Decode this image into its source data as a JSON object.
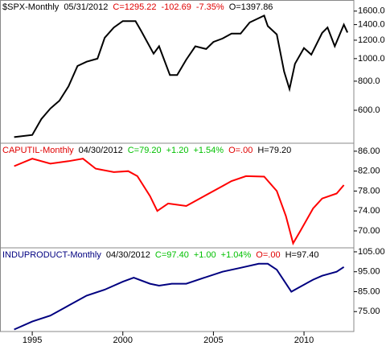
{
  "chart_data": [
    {
      "type": "line",
      "log_scale": true,
      "header": [
        {
          "text": "$SPX-Monthly",
          "color": "#000000"
        },
        {
          "text": "05/31/2012",
          "color": "#000000"
        },
        {
          "text": "C=1295.22",
          "color": "#e00000"
        },
        {
          "text": "-102.69",
          "color": "#e00000"
        },
        {
          "text": "-7.35%",
          "color": "#e00000"
        },
        {
          "text": "O=1397.86",
          "color": "#000000"
        }
      ],
      "x": [
        1994.0,
        1995.0,
        1995.5,
        1996.0,
        1996.5,
        1997.0,
        1997.5,
        1998.0,
        1998.6,
        1999.0,
        1999.5,
        2000.0,
        2000.7,
        2001.0,
        2001.7,
        2002.0,
        2002.6,
        2003.0,
        2003.5,
        2004.0,
        2004.6,
        2005.0,
        2005.5,
        2006.0,
        2006.5,
        2007.0,
        2007.8,
        2008.0,
        2008.5,
        2008.9,
        2009.2,
        2009.5,
        2010.0,
        2010.4,
        2011.0,
        2011.3,
        2011.7,
        2012.2,
        2012.4
      ],
      "series": [
        {
          "name": "$SPX",
          "color": "#000000",
          "values": [
            460,
            470,
            550,
            610,
            660,
            760,
            930,
            970,
            1000,
            1230,
            1360,
            1450,
            1450,
            1320,
            1050,
            1130,
            850,
            850,
            990,
            1130,
            1100,
            1180,
            1220,
            1280,
            1280,
            1430,
            1530,
            1380,
            1270,
            880,
            740,
            950,
            1110,
            1040,
            1290,
            1360,
            1130,
            1400,
            1295
          ]
        }
      ],
      "xlim": [
        1993.22,
        2012.75
      ],
      "ylim": [
        433,
        1786
      ],
      "yticks": [
        {
          "value": 600,
          "label": "600.0"
        },
        {
          "value": 800,
          "label": "800.0"
        },
        {
          "value": 1000,
          "label": "1000.0"
        },
        {
          "value": 1200,
          "label": "1200.0"
        },
        {
          "value": 1400,
          "label": "1400.0"
        },
        {
          "value": 1600,
          "label": "1600.0"
        }
      ]
    },
    {
      "type": "line",
      "log_scale": false,
      "header": [
        {
          "text": "CAPUTIL-Monthly",
          "color": "#e00000"
        },
        {
          "text": "04/30/2012",
          "color": "#000000"
        },
        {
          "text": "C=79.20",
          "color": "#00c000"
        },
        {
          "text": "+1.20",
          "color": "#00c000"
        },
        {
          "text": "+1.54%",
          "color": "#00c000"
        },
        {
          "text": "O=.00",
          "color": "#e00000"
        },
        {
          "text": "H=79.20",
          "color": "#000000"
        }
      ],
      "x": [
        1994.0,
        1995.0,
        1996.0,
        1997.0,
        1997.8,
        1998.5,
        1999.5,
        2000.3,
        2000.8,
        2001.5,
        2001.9,
        2002.5,
        2003.5,
        2004.5,
        2005.5,
        2006.0,
        2006.8,
        2007.8,
        2008.5,
        2009.0,
        2009.4,
        2009.8,
        2010.5,
        2011.0,
        2011.8,
        2012.2
      ],
      "series": [
        {
          "name": "CAPUTIL",
          "color": "#ff0000",
          "values": [
            83,
            84.5,
            83.5,
            84,
            84.5,
            82.5,
            81.8,
            82,
            81,
            77,
            74,
            75.5,
            75,
            77,
            79,
            80,
            81,
            80.9,
            78,
            73,
            67.5,
            70,
            74.5,
            76.5,
            77.5,
            79.2
          ]
        }
      ],
      "xlim": [
        1993.22,
        2012.75
      ],
      "ylim": [
        66.6,
        87.6
      ],
      "yticks": [
        {
          "value": 70,
          "label": "70.00"
        },
        {
          "value": 74,
          "label": "74.00"
        },
        {
          "value": 78,
          "label": "78.00"
        },
        {
          "value": 82,
          "label": "82.00"
        },
        {
          "value": 86,
          "label": "86.00"
        }
      ]
    },
    {
      "type": "line",
      "log_scale": false,
      "header": [
        {
          "text": "INDUPRODUCT-Monthly",
          "color": "#000080"
        },
        {
          "text": "04/30/2012",
          "color": "#000000"
        },
        {
          "text": "C=97.40",
          "color": "#00c000"
        },
        {
          "text": "+1.00",
          "color": "#00c000"
        },
        {
          "text": "+1.04%",
          "color": "#00c000"
        },
        {
          "text": "O=.00",
          "color": "#e00000"
        },
        {
          "text": "H=97.40",
          "color": "#000000"
        }
      ],
      "x": [
        1994.0,
        1995.0,
        1996.0,
        1997.0,
        1998.0,
        1999.0,
        2000.0,
        2000.6,
        2001.5,
        2002.0,
        2002.7,
        2003.5,
        2004.5,
        2005.5,
        2006.5,
        2007.5,
        2008.0,
        2008.5,
        2009.3,
        2009.7,
        2010.5,
        2011.0,
        2011.8,
        2012.2
      ],
      "series": [
        {
          "name": "INDUPRODUCT",
          "color": "#000080",
          "values": [
            66,
            70,
            73,
            78,
            83,
            86,
            90,
            92,
            89,
            88,
            89,
            89,
            92,
            95,
            97,
            99,
            99,
            96,
            85,
            87,
            91,
            93,
            95,
            97.4
          ]
        }
      ],
      "xlim": [
        1993.22,
        2012.75
      ],
      "ylim": [
        65,
        107
      ],
      "yticks": [
        {
          "value": 75,
          "label": "75.00"
        },
        {
          "value": 85,
          "label": "85.00"
        },
        {
          "value": 95,
          "label": "95.00"
        },
        {
          "value": 105,
          "label": "105.00"
        }
      ],
      "xticks": [
        1995,
        2000,
        2005,
        2010
      ]
    }
  ]
}
